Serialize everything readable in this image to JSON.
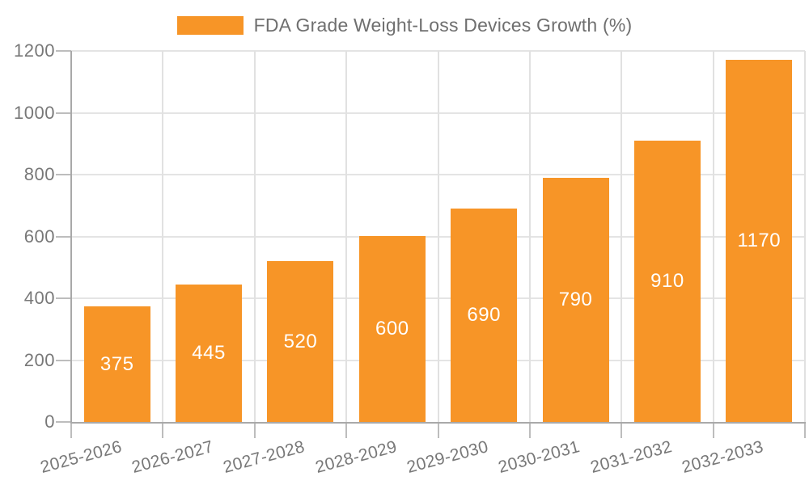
{
  "legend": {
    "label": "FDA Grade Weight-Loss Devices Growth (%)"
  },
  "chart_data": {
    "type": "bar",
    "title": "FDA Grade Weight-Loss Devices Growth (%)",
    "categories": [
      "2025-2026",
      "2026-2027",
      "2027-2028",
      "2028-2029",
      "2029-2030",
      "2030-2031",
      "2031-2032",
      "2032-2033"
    ],
    "values": [
      375,
      445,
      520,
      600,
      690,
      790,
      910,
      1170
    ],
    "xlabel": "",
    "ylabel": "",
    "ylim": [
      0,
      1200
    ],
    "yticks": [
      0,
      200,
      400,
      600,
      800,
      1000,
      1200
    ],
    "grid": true,
    "legend_position": "top",
    "value_label_position": "inside-center"
  },
  "colors": {
    "bar": "#F79527",
    "bar_label": "#FFFFFF",
    "grid": "#E3E3E3",
    "axis": "#A9A9A9",
    "tick": "#BDBDBD",
    "text": "#787878",
    "background": "#FFFFFF"
  }
}
